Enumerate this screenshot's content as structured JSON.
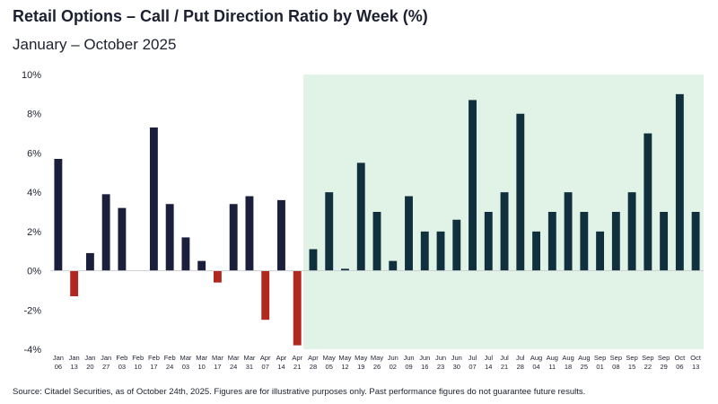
{
  "header": {
    "title": "Retail Options – Call / Put Direction Ratio by Week (%)",
    "subtitle": "January – October 2025"
  },
  "footer": {
    "source": "Source: Citadel Securities, as of October 24th, 2025. Figures are for illustrative purposes only. Past performance figures do not guarantee future results."
  },
  "colors": {
    "early_bar": "#1c1f3c",
    "negative_bar": "#b2281e",
    "late_bar": "#11303e",
    "highlight_band": "#e1f3e6",
    "axis_text": "#1c2030"
  },
  "chart_data": {
    "type": "bar",
    "categories": [
      [
        "Jan",
        "06"
      ],
      [
        "Jan",
        "13"
      ],
      [
        "Jan",
        "20"
      ],
      [
        "Jan",
        "27"
      ],
      [
        "Feb",
        "03"
      ],
      [
        "Feb",
        "10"
      ],
      [
        "Feb",
        "17"
      ],
      [
        "Feb",
        "24"
      ],
      [
        "Mar",
        "03"
      ],
      [
        "Mar",
        "10"
      ],
      [
        "Mar",
        "17"
      ],
      [
        "Mar",
        "24"
      ],
      [
        "Mar",
        "31"
      ],
      [
        "Apr",
        "07"
      ],
      [
        "Apr",
        "14"
      ],
      [
        "Apr",
        "21"
      ],
      [
        "Apr",
        "28"
      ],
      [
        "May",
        "05"
      ],
      [
        "May",
        "12"
      ],
      [
        "May",
        "19"
      ],
      [
        "May",
        "26"
      ],
      [
        "Jun",
        "02"
      ],
      [
        "Jun",
        "09"
      ],
      [
        "Jun",
        "16"
      ],
      [
        "Jun",
        "23"
      ],
      [
        "Jun",
        "30"
      ],
      [
        "Jul",
        "07"
      ],
      [
        "Jul",
        "14"
      ],
      [
        "Jul",
        "21"
      ],
      [
        "Jul",
        "28"
      ],
      [
        "Aug",
        "04"
      ],
      [
        "Aug",
        "11"
      ],
      [
        "Aug",
        "18"
      ],
      [
        "Aug",
        "25"
      ],
      [
        "Sep",
        "01"
      ],
      [
        "Sep",
        "08"
      ],
      [
        "Sep",
        "15"
      ],
      [
        "Sep",
        "22"
      ],
      [
        "Sep",
        "29"
      ],
      [
        "Oct",
        "06"
      ],
      [
        "Oct",
        "13"
      ]
    ],
    "values": [
      5.7,
      -1.3,
      0.9,
      3.9,
      3.2,
      0.0,
      7.3,
      3.4,
      1.7,
      0.5,
      -0.6,
      3.4,
      3.8,
      -2.5,
      3.6,
      -3.8,
      1.1,
      4.0,
      0.1,
      5.5,
      3.0,
      0.5,
      3.8,
      2.0,
      2.0,
      2.6,
      8.7,
      3.0,
      4.0,
      8.0,
      2.0,
      3.0,
      4.0,
      3.0,
      2.0,
      3.0,
      4.0,
      7.0,
      3.0,
      9.0,
      3.0
    ],
    "highlight_from_category": [
      "Apr",
      "28"
    ],
    "ylim": [
      -4,
      10
    ],
    "yticks": [
      -4,
      -2,
      0,
      2,
      4,
      6,
      8,
      10
    ],
    "ytick_labels": [
      "-4%",
      "-2%",
      "0%",
      "2%",
      "4%",
      "6%",
      "8%",
      "10%"
    ],
    "grid": false,
    "legend": "none"
  }
}
